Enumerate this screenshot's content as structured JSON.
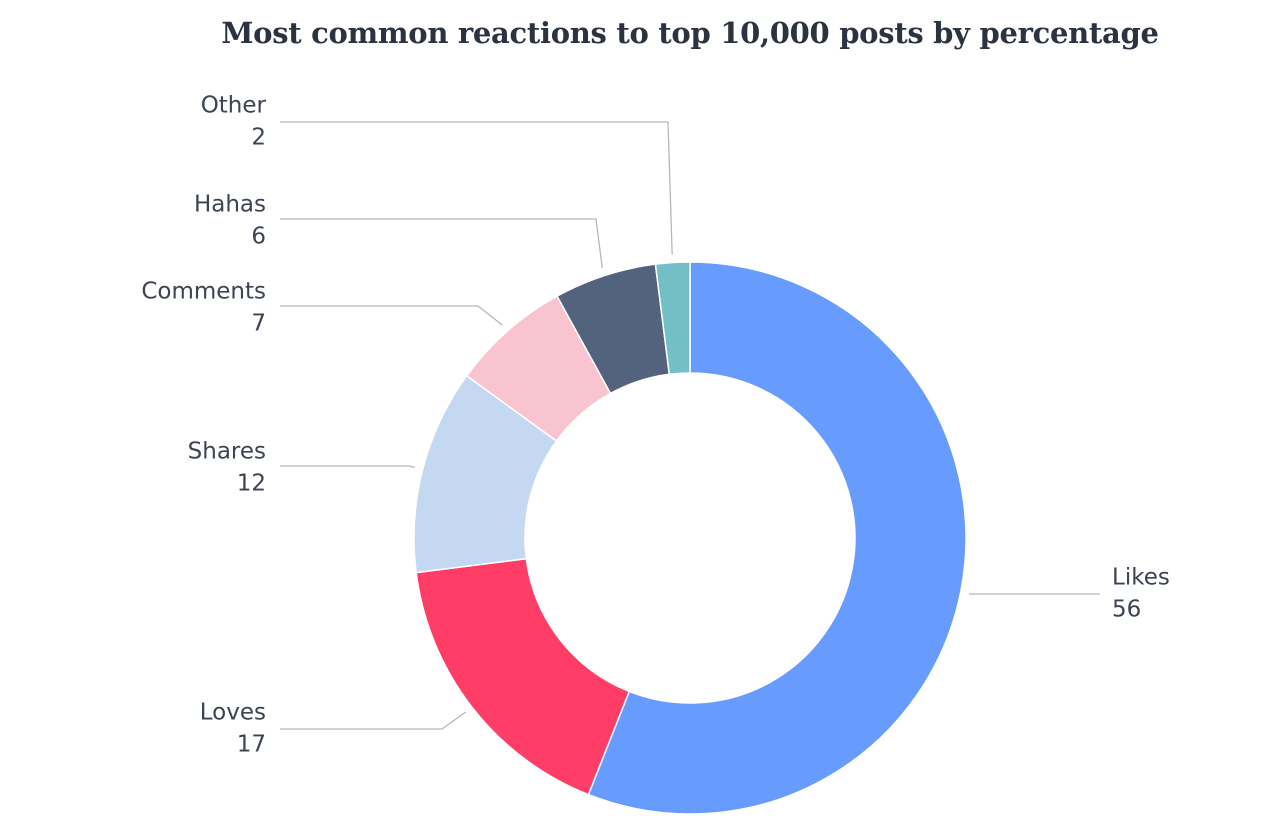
{
  "chart_data": {
    "type": "pie",
    "style": "donut",
    "title": "Most common reactions to top 10,000 posts by percentage",
    "categories": [
      "Likes",
      "Loves",
      "Shares",
      "Comments",
      "Hahas",
      "Other"
    ],
    "values": [
      56,
      17,
      12,
      7,
      6,
      2
    ],
    "labels": [
      "56",
      "17",
      "12",
      "7",
      "6",
      "2"
    ],
    "colors": [
      "#679cfe",
      "#ff3d67",
      "#c5d8f1",
      "#f7c4d0",
      "#54637d",
      "#73bfc8"
    ],
    "legend": "none"
  }
}
